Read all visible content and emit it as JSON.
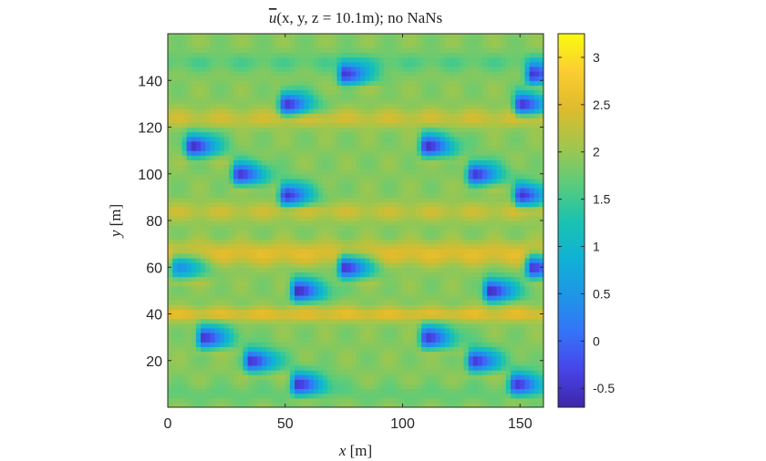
{
  "chart_data": {
    "type": "heatmap",
    "title_var": "u",
    "title_args": "(x, y, z = 10.1m); no NaNs",
    "xlabel_var": "x",
    "xlabel_unit": " [m]",
    "ylabel_var": "y",
    "ylabel_unit": " [m]",
    "xlim": [
      0,
      160
    ],
    "ylim": [
      0,
      160
    ],
    "xticks": [
      0,
      50,
      100,
      150
    ],
    "yticks": [
      20,
      40,
      60,
      80,
      100,
      120,
      140
    ],
    "colormap": "parula",
    "clim": [
      -0.7,
      3.25
    ],
    "colorbar_ticks": [
      -0.5,
      0,
      0.5,
      1,
      1.5,
      2,
      2.5,
      3
    ],
    "background_value": 1.9,
    "bands": [
      {
        "y": 124,
        "v": 2.35,
        "w": 4
      },
      {
        "y": 84,
        "v": 2.3,
        "w": 4
      },
      {
        "y": 66,
        "v": 2.55,
        "w": 5
      },
      {
        "y": 40,
        "v": 2.55,
        "w": 3
      },
      {
        "y": 148,
        "v": 1.6,
        "w": 4
      },
      {
        "y": 6,
        "v": 1.7,
        "w": 4
      }
    ],
    "wakes": [
      {
        "x": 10,
        "y": 112,
        "v": -0.6
      },
      {
        "x": 110,
        "y": 112,
        "v": -0.6
      },
      {
        "x": 30,
        "y": 100,
        "v": -0.5
      },
      {
        "x": 130,
        "y": 100,
        "v": -0.5
      },
      {
        "x": 50,
        "y": 91,
        "v": -0.5
      },
      {
        "x": 150,
        "y": 91,
        "v": -0.5
      },
      {
        "x": 50,
        "y": 130,
        "v": -0.5
      },
      {
        "x": 150,
        "y": 130,
        "v": -0.5
      },
      {
        "x": 75,
        "y": 143,
        "v": -0.45
      },
      {
        "x": 155,
        "y": 143,
        "v": -0.45
      },
      {
        "x": 75,
        "y": 60,
        "v": -0.5
      },
      {
        "x": 155,
        "y": 60,
        "v": -0.45
      },
      {
        "x": 4,
        "y": 60,
        "v": 0.4
      },
      {
        "x": 55,
        "y": 50,
        "v": -0.6
      },
      {
        "x": 137,
        "y": 50,
        "v": -0.6
      },
      {
        "x": 15,
        "y": 30,
        "v": -0.5
      },
      {
        "x": 110,
        "y": 30,
        "v": -0.5
      },
      {
        "x": 35,
        "y": 20,
        "v": -0.5
      },
      {
        "x": 130,
        "y": 20,
        "v": -0.5
      },
      {
        "x": 55,
        "y": 10,
        "v": -0.5
      },
      {
        "x": 148,
        "y": 10,
        "v": -0.5
      }
    ]
  }
}
